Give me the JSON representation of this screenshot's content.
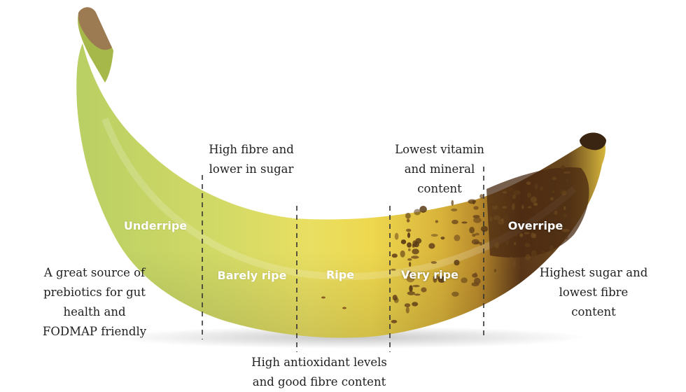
{
  "stages": [
    {
      "label": "Underripe",
      "color": "#bfd36a"
    },
    {
      "label": "Barely ripe",
      "color": "#e6dc63"
    },
    {
      "label": "Ripe",
      "color": "#ecd64f"
    },
    {
      "label": "Very ripe",
      "color": "#d9b43a"
    },
    {
      "label": "Overripe",
      "color": "#5a3618"
    }
  ],
  "annotations": {
    "underripe": "A great source of\nprebiotics for gut\nhealth and\nFODMAP friendly",
    "barely_ripe": "High fibre and\nlower in sugar",
    "ripe": "High antioxidant levels\nand good fibre content",
    "very_ripe": "Lowest vitamin\nand mineral\ncontent",
    "overripe": "Highest sugar and\nlowest fibre\ncontent"
  }
}
